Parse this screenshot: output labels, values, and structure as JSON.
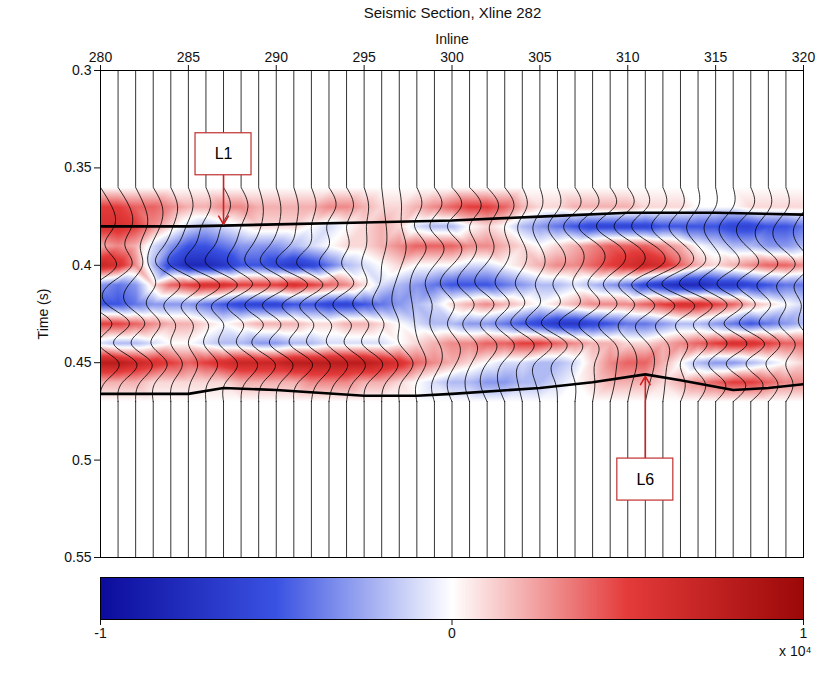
{
  "chart_data": {
    "type": "seismic_section",
    "title": "Seismic Section, Xline 282",
    "x_label": "Inline",
    "y_label": "Time (s)",
    "xlim": [
      280,
      320
    ],
    "xticks": [
      280,
      285,
      290,
      295,
      300,
      305,
      310,
      315,
      320
    ],
    "ylim": [
      0.3,
      0.55
    ],
    "yticks": [
      0.3,
      0.35,
      0.4,
      0.45,
      0.5,
      0.55
    ],
    "inlines": [
      280,
      281,
      282,
      283,
      284,
      285,
      286,
      287,
      288,
      289,
      290,
      291,
      292,
      293,
      294,
      295,
      296,
      297,
      298,
      299,
      300,
      301,
      302,
      303,
      304,
      305,
      306,
      307,
      308,
      309,
      310,
      311,
      312,
      313,
      314,
      315,
      316,
      317,
      318,
      319,
      320
    ],
    "times": [
      0.36,
      0.37,
      0.38,
      0.39,
      0.4,
      0.41,
      0.42,
      0.43,
      0.44,
      0.45,
      0.46,
      0.47
    ],
    "amplitude": [
      [
        0,
        0,
        0,
        0,
        0,
        0,
        0,
        0,
        0,
        0,
        0,
        0,
        0,
        0,
        0,
        0,
        0,
        0,
        0,
        0,
        0,
        0,
        0,
        0,
        0,
        0,
        0,
        0,
        0,
        0,
        0,
        0,
        0,
        0,
        0,
        0,
        0,
        0,
        0,
        0,
        0
      ],
      [
        5000,
        5000,
        4000,
        4000,
        3000,
        2000,
        2000,
        3000,
        3000,
        2000,
        2000,
        2000,
        2000,
        3000,
        3000,
        2000,
        1000,
        1000,
        2000,
        3000,
        4000,
        5000,
        5000,
        4000,
        2000,
        1000,
        1000,
        2000,
        2000,
        2000,
        2000,
        1000,
        1000,
        1000,
        0,
        0,
        0,
        1000,
        1000,
        1000,
        1000
      ],
      [
        6000,
        6000,
        5000,
        3000,
        1000,
        -1000,
        -2000,
        -1000,
        0,
        1000,
        1000,
        1000,
        0,
        -1000,
        0,
        1000,
        2000,
        1000,
        -1000,
        -2000,
        -2000,
        0,
        1000,
        0,
        -2000,
        -3000,
        -4000,
        -5000,
        -6000,
        -6000,
        -6000,
        -6000,
        -5000,
        -5000,
        -5000,
        -5000,
        -6000,
        -6000,
        -5000,
        -5000,
        -4000
      ],
      [
        2000,
        3000,
        2000,
        -1000,
        -3000,
        -5000,
        -5000,
        -4000,
        -3000,
        -3000,
        -3000,
        -2000,
        -1000,
        0,
        1000,
        1000,
        2000,
        3000,
        4000,
        4000,
        4000,
        3000,
        3000,
        2000,
        1000,
        0,
        1000,
        2000,
        3000,
        4000,
        4000,
        4000,
        3000,
        2000,
        0,
        -1000,
        -2000,
        -2000,
        -3000,
        -3000,
        -2000
      ],
      [
        7000,
        6000,
        3000,
        -2000,
        -6000,
        -8000,
        -8000,
        -7000,
        -5000,
        -5000,
        -6000,
        -7000,
        -6000,
        -4000,
        -2000,
        -1000,
        0,
        1000,
        0,
        0,
        0,
        -1000,
        -1000,
        0,
        1000,
        2000,
        3000,
        3000,
        4000,
        5000,
        6000,
        7000,
        6000,
        4000,
        2000,
        1000,
        2000,
        3000,
        4000,
        4000,
        3000
      ],
      [
        -3000,
        -4000,
        -3000,
        1000,
        4000,
        5000,
        6000,
        6000,
        5000,
        5000,
        5000,
        6000,
        5000,
        4000,
        3000,
        1000,
        -1000,
        -2000,
        -3000,
        -4000,
        -5000,
        -5000,
        -5000,
        -4000,
        -3000,
        -2000,
        -2000,
        -1000,
        -2000,
        -3000,
        -4000,
        -6000,
        -7000,
        -8000,
        -8000,
        -7000,
        -7000,
        -6000,
        -5000,
        -4000,
        -4000
      ],
      [
        -5000,
        -5000,
        -4000,
        -3000,
        -3000,
        -3000,
        -4000,
        -5000,
        -6000,
        -6000,
        -6000,
        -5000,
        -5000,
        -6000,
        -6000,
        -5000,
        -4000,
        -3000,
        -2000,
        -1000,
        1000,
        2000,
        3000,
        2000,
        1000,
        0,
        1000,
        2000,
        3000,
        3000,
        3000,
        4000,
        5000,
        6000,
        6000,
        5000,
        4000,
        2000,
        1000,
        0,
        -1000
      ],
      [
        5000,
        5000,
        4000,
        3000,
        2000,
        2000,
        1000,
        0,
        1000,
        2000,
        2000,
        2000,
        1000,
        1000,
        2000,
        2000,
        1000,
        0,
        -1000,
        -2000,
        -2000,
        -3000,
        -3000,
        -4000,
        -5000,
        -6000,
        -7000,
        -7000,
        -6000,
        -5000,
        -4000,
        -4000,
        -3000,
        -2000,
        -2000,
        -3000,
        -4000,
        -5000,
        -4000,
        -3000,
        -2000
      ],
      [
        -1000,
        -2000,
        -2000,
        -1000,
        0,
        0,
        -1000,
        -2000,
        -2000,
        -3000,
        -3000,
        -2000,
        -2000,
        -1000,
        -1000,
        -1000,
        -1000,
        0,
        1000,
        2000,
        3000,
        3000,
        4000,
        4000,
        5000,
        5000,
        4000,
        3000,
        2000,
        2000,
        1000,
        1000,
        2000,
        3000,
        4000,
        5000,
        6000,
        6000,
        5000,
        4000,
        4000
      ],
      [
        8000,
        8000,
        7000,
        6000,
        5000,
        4000,
        5000,
        6000,
        7000,
        7000,
        7000,
        8000,
        8000,
        8000,
        8000,
        8000,
        7000,
        6000,
        4000,
        3000,
        2000,
        1000,
        0,
        -1000,
        -1000,
        -2000,
        -2000,
        -1000,
        1000,
        3000,
        4000,
        4000,
        2000,
        0,
        -2000,
        -3000,
        -3000,
        -2000,
        -1000,
        0,
        1000
      ],
      [
        2000,
        2000,
        2000,
        1000,
        1000,
        1000,
        1000,
        1000,
        2000,
        2000,
        2000,
        2000,
        3000,
        3000,
        3000,
        2000,
        2000,
        1000,
        0,
        -1000,
        -2000,
        -2000,
        -3000,
        -3000,
        -2000,
        -2000,
        -1000,
        0,
        1000,
        2000,
        2000,
        2000,
        1000,
        2000,
        3000,
        4000,
        5000,
        5000,
        4000,
        3000,
        3000
      ],
      [
        0,
        0,
        0,
        0,
        0,
        0,
        0,
        0,
        0,
        0,
        0,
        0,
        0,
        0,
        0,
        0,
        0,
        0,
        0,
        0,
        0,
        0,
        0,
        0,
        0,
        0,
        0,
        0,
        0,
        0,
        0,
        0,
        0,
        0,
        0,
        0,
        0,
        0,
        0,
        0,
        0
      ]
    ],
    "horizons": [
      {
        "label": "L1",
        "inline": [
          280,
          285,
          290,
          295,
          300,
          305,
          310,
          315,
          320
        ],
        "time": [
          0.38,
          0.38,
          0.379,
          0.378,
          0.377,
          0.375,
          0.373,
          0.373,
          0.374
        ],
        "label_x": 287,
        "label_y": 0.343,
        "arrow_to": [
          287,
          0.379
        ]
      },
      {
        "label": "L6",
        "inline": [
          280,
          285,
          287,
          290,
          295,
          298,
          300,
          305,
          308,
          311,
          313,
          316,
          318,
          320
        ],
        "time": [
          0.466,
          0.466,
          0.463,
          0.464,
          0.467,
          0.467,
          0.466,
          0.463,
          0.46,
          0.456,
          0.459,
          0.464,
          0.463,
          0.461
        ],
        "label_x": 311,
        "label_y": 0.51,
        "arrow_to": [
          311,
          0.457
        ]
      }
    ],
    "colorbar": {
      "range": [
        -10000,
        10000
      ],
      "ticks": [
        {
          "value": -10000,
          "label": "-1"
        },
        0,
        {
          "value": 10000,
          "label": "1"
        }
      ],
      "multiplier_label": "x 10⁴"
    }
  }
}
